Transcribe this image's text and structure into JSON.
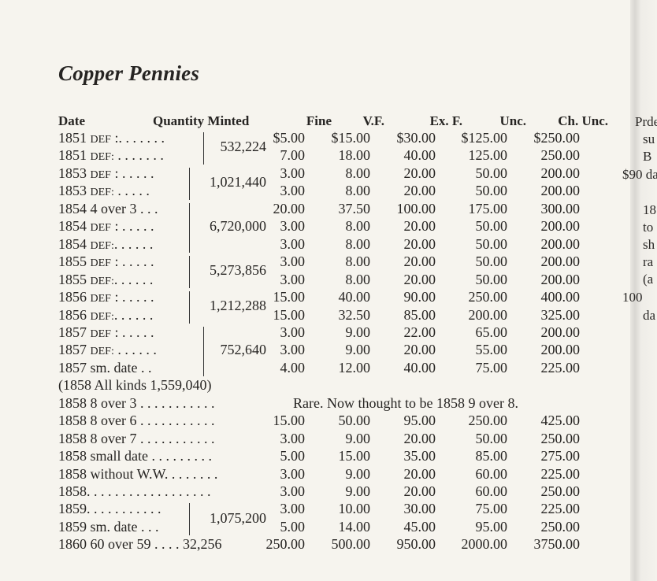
{
  "title": "Copper Pennies",
  "headers": {
    "date": "Date",
    "quantity": "Quantity Minted",
    "grades": [
      "Fine",
      "V.F.",
      "Ex. F.",
      "Unc.",
      "Ch. Unc."
    ]
  },
  "rows": [
    {
      "year": "1851",
      "variety": "DEF",
      "dots": " :. . . . . . .",
      "qty": "532,224",
      "group": 2,
      "prices": [
        "$5.00",
        "$15.00",
        "$30.00",
        "$125.00",
        "$250.00"
      ]
    },
    {
      "year": "1851",
      "variety": "DEF:",
      "dots": " . . . . . . .",
      "prices": [
        "7.00",
        "18.00",
        "40.00",
        "125.00",
        "250.00"
      ]
    },
    {
      "year": "1853",
      "variety": "DEF",
      "dots": " : . . . . .",
      "qty": "1,021,440",
      "group": 2,
      "prices": [
        "3.00",
        "8.00",
        "20.00",
        "50.00",
        "200.00"
      ]
    },
    {
      "year": "1853",
      "variety": "DEF:",
      "dots": " . . . . .",
      "prices": [
        "3.00",
        "8.00",
        "20.00",
        "50.00",
        "200.00"
      ]
    },
    {
      "year": "1854",
      "variety": "",
      "dots": " 4 over 3 . . .",
      "qty": "6,720,000",
      "group": 3,
      "prices": [
        "20.00",
        "37.50",
        "100.00",
        "175.00",
        "300.00"
      ]
    },
    {
      "year": "1854",
      "variety": "DEF",
      "dots": " : . . . . .",
      "prices": [
        "3.00",
        "8.00",
        "20.00",
        "50.00",
        "200.00"
      ]
    },
    {
      "year": "1854",
      "variety": "DEF:",
      "dots": ". . . . . .",
      "prices": [
        "3.00",
        "8.00",
        "20.00",
        "50.00",
        "200.00"
      ]
    },
    {
      "year": "1855",
      "variety": "DEF",
      "dots": " : . . . . .",
      "qty": "5,273,856",
      "group": 2,
      "prices": [
        "3.00",
        "8.00",
        "20.00",
        "50.00",
        "200.00"
      ]
    },
    {
      "year": "1855",
      "variety": "DEF:",
      "dots": ". . . . . .",
      "prices": [
        "3.00",
        "8.00",
        "20.00",
        "50.00",
        "200.00"
      ]
    },
    {
      "year": "1856",
      "variety": "DEF",
      "dots": " : . . . . .",
      "qty": "1,212,288",
      "group": 2,
      "prices": [
        "15.00",
        "40.00",
        "90.00",
        "250.00",
        "400.00"
      ]
    },
    {
      "year": "1856",
      "variety": "DEF:",
      "dots": ". . . . . .",
      "prices": [
        "15.00",
        "32.50",
        "85.00",
        "200.00",
        "325.00"
      ]
    },
    {
      "year": "1857",
      "variety": "DEF",
      "dots": " : . . . . .",
      "qty": "752,640",
      "group": 3,
      "prices": [
        "3.00",
        "9.00",
        "22.00",
        "65.00",
        "200.00"
      ]
    },
    {
      "year": "1857",
      "variety": "DEF:",
      "dots": " . . . . . .",
      "prices": [
        "3.00",
        "9.00",
        "20.00",
        "55.00",
        "200.00"
      ]
    },
    {
      "year": "1857",
      "variety": "",
      "dots": " sm. date . .",
      "prices": [
        "4.00",
        "12.00",
        "40.00",
        "75.00",
        "225.00"
      ]
    },
    {
      "year": "(1858 All kinds 1,559,040)",
      "variety": "",
      "dots": "",
      "prices": []
    },
    {
      "year": "1858",
      "variety": "",
      "dots": " 8 over 3  . . . . . . . . . . .",
      "note": "Rare. Now thought to be 1858 9 over 8.",
      "prices": []
    },
    {
      "year": "1858",
      "variety": "",
      "dots": " 8 over 6  . . . . . . . . . . .",
      "prices": [
        "15.00",
        "50.00",
        "95.00",
        "250.00",
        "425.00"
      ]
    },
    {
      "year": "1858",
      "variety": "",
      "dots": " 8 over 7  . . . . . . . . . . .",
      "prices": [
        "3.00",
        "9.00",
        "20.00",
        "50.00",
        "250.00"
      ]
    },
    {
      "year": "1858",
      "variety": "",
      "dots": " small date  . . . . . . . . .",
      "prices": [
        "5.00",
        "15.00",
        "35.00",
        "85.00",
        "275.00"
      ]
    },
    {
      "year": "1858",
      "variety": "",
      "dots": " without W.W.  . . . . . . .",
      "prices": [
        "3.00",
        "9.00",
        "20.00",
        "60.00",
        "225.00"
      ]
    },
    {
      "year": "1858",
      "variety": "",
      "dots": ". . . . . . . . . . . . . . . . . .",
      "prices": [
        "3.00",
        "9.00",
        "20.00",
        "60.00",
        "250.00"
      ]
    },
    {
      "year": "1859",
      "variety": "",
      "dots": ". . . . . . . . . . .",
      "qty": "1,075,200",
      "group": 2,
      "prices": [
        "3.00",
        "10.00",
        "30.00",
        "75.00",
        "225.00"
      ]
    },
    {
      "year": "1859",
      "variety": "",
      "dots": " sm. date . . .",
      "prices": [
        "5.00",
        "14.00",
        "45.00",
        "95.00",
        "250.00"
      ]
    },
    {
      "year": "1860",
      "variety": "",
      "dots": " 60 over 59  . . . . 32,256",
      "prices": [
        "250.00",
        "500.00",
        "950.00",
        "2000.00",
        "3750.00"
      ]
    }
  ],
  "next_page_fragments": [
    "Prde",
    "su",
    "B",
    "$90 da",
    "18",
    "to",
    "sh",
    "ra",
    "(a",
    "100",
    "da"
  ]
}
